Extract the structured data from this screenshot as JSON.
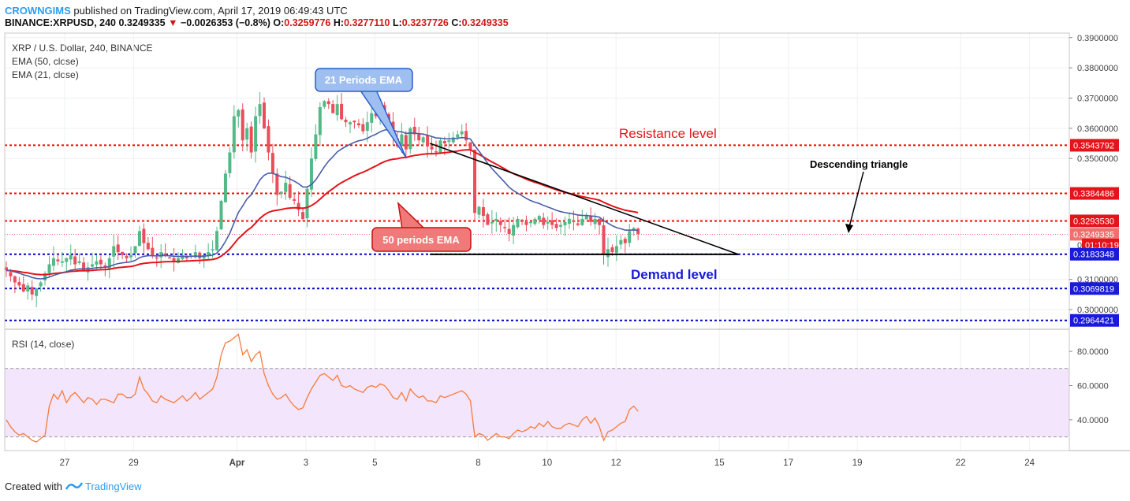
{
  "header": {
    "author": "CROWNGIMS",
    "published_text": "published on TradingView.com, April 17, 2019 06:49:43 UTC",
    "symbol_line": "BINANCE:XRPUSD, 240",
    "last_price": "0.3249335",
    "change_arrow": "▼",
    "change": "−0.0026353 (−0.8%)",
    "o_label": "O:",
    "o_value": "0.3259776",
    "h_label": "H:",
    "h_value": "0.3277110",
    "l_label": "L:",
    "l_value": "0.3237726",
    "c_label": "C:",
    "c_value": "0.3249335"
  },
  "legend": {
    "title": "XRP / U.S. Dollar, 240, BINANCE",
    "ema50": "EMA (50, close)",
    "ema21": "EMA (21, close)",
    "rsi": "RSI (14, close)"
  },
  "annotations": {
    "ema21_callout": "21 Periods EMA",
    "ema50_callout": "50 periods EMA",
    "resistance": "Resistance level",
    "demand": "Demand level",
    "triangle": "Descending triangle"
  },
  "footer": {
    "created_with": "Created with",
    "brand": "TradingView"
  },
  "colors": {
    "up": "#53b987",
    "down": "#eb4d5c",
    "ema21": "#4a5ea8",
    "ema50": "#e5141b",
    "red_dotted": "#ff0000",
    "blue_dotted": "#0000cc",
    "rsi_line": "#f57c3c",
    "rsi_band": "#f3e5fb",
    "axis_text": "#444444"
  },
  "chart_data": {
    "type": "candlestick",
    "x_tick_labels": [
      "27",
      "29",
      "Apr",
      "3",
      "5",
      "8",
      "10",
      "12",
      "15",
      "17",
      "19",
      "22",
      "24"
    ],
    "y_tick_labels": [
      "0.3900000",
      "0.3800000",
      "0.3700000",
      "0.3600000",
      "0.3500000",
      "0.3100000",
      "0.3000000"
    ],
    "ylim": [
      0.2935,
      0.3915
    ],
    "price_tags": [
      {
        "value": 0.3543792,
        "label": "0.3543792",
        "color": "#e5141b"
      },
      {
        "value": 0.3384486,
        "label": "0.3384486",
        "color": "#e5141b"
      },
      {
        "value": 0.329353,
        "label": "0.3293530",
        "color": "#e5141b"
      },
      {
        "value": 0.3249335,
        "label": "0.3249335",
        "color": "#f07070"
      },
      {
        "value": 0.3214,
        "label": "01:10:19",
        "color": "#e5141b"
      },
      {
        "value": 0.3183348,
        "label": "0.3183348",
        "color": "#1a1adb"
      },
      {
        "value": 0.3069819,
        "label": "0.3069819",
        "color": "#1a1adb"
      },
      {
        "value": 0.2964421,
        "label": "0.2964421",
        "color": "#1a1adb"
      }
    ],
    "partial_tick_label": "0",
    "horizontal_levels": [
      {
        "value": 0.3543792,
        "color": "#ff0000"
      },
      {
        "value": 0.3384486,
        "color": "#ff0000"
      },
      {
        "value": 0.329353,
        "color": "#ff0000"
      },
      {
        "value": 0.3183348,
        "color": "#0000cc"
      },
      {
        "value": 0.3069819,
        "color": "#0000cc"
      },
      {
        "value": 0.2964421,
        "color": "#0000cc"
      }
    ],
    "descending_triangle": {
      "upper": [
        [
          10.6,
          0.355
        ],
        [
          19.55,
          0.3183
        ]
      ],
      "lower": [
        [
          10.6,
          0.3183
        ],
        [
          19.55,
          0.3183
        ]
      ]
    },
    "candles_close": [
      0.313,
      0.311,
      0.309,
      0.308,
      0.306,
      0.308,
      0.305,
      0.307,
      0.309,
      0.312,
      0.315,
      0.317,
      0.316,
      0.316,
      0.317,
      0.318,
      0.315,
      0.316,
      0.313,
      0.314,
      0.315,
      0.316,
      0.315,
      0.314,
      0.317,
      0.321,
      0.319,
      0.318,
      0.317,
      0.318,
      0.321,
      0.326,
      0.322,
      0.32,
      0.318,
      0.317,
      0.319,
      0.318,
      0.317,
      0.316,
      0.317,
      0.318,
      0.317,
      0.318,
      0.319,
      0.317,
      0.318,
      0.319,
      0.32,
      0.326,
      0.336,
      0.345,
      0.352,
      0.364,
      0.366,
      0.356,
      0.36,
      0.352,
      0.364,
      0.368,
      0.36,
      0.352,
      0.345,
      0.338,
      0.339,
      0.342,
      0.337,
      0.336,
      0.333,
      0.33,
      0.34,
      0.35,
      0.358,
      0.367,
      0.369,
      0.368,
      0.365,
      0.368,
      0.363,
      0.362,
      0.362,
      0.362,
      0.361,
      0.359,
      0.362,
      0.365,
      0.364,
      0.367,
      0.365,
      0.362,
      0.357,
      0.354,
      0.358,
      0.353,
      0.36,
      0.358,
      0.356,
      0.357,
      0.354,
      0.353,
      0.352,
      0.356,
      0.355,
      0.356,
      0.357,
      0.358,
      0.359,
      0.356,
      0.353,
      0.332,
      0.334,
      0.331,
      0.328,
      0.329,
      0.33,
      0.328,
      0.327,
      0.325,
      0.328,
      0.33,
      0.329,
      0.328,
      0.329,
      0.33,
      0.331,
      0.328,
      0.329,
      0.328,
      0.327,
      0.328,
      0.329,
      0.33,
      0.329,
      0.328,
      0.33,
      0.331,
      0.329,
      0.33,
      0.328,
      0.318,
      0.32,
      0.319,
      0.321,
      0.323,
      0.322,
      0.326,
      0.327,
      0.325
    ],
    "rsi": {
      "ylim": [
        22,
        92
      ],
      "y_tick_labels": [
        "80.0000",
        "60.0000",
        "40.0000"
      ],
      "levels": [
        70,
        30
      ],
      "values": [
        40,
        36,
        33,
        31,
        32,
        30,
        28,
        27,
        29,
        31,
        48,
        55,
        52,
        57,
        50,
        54,
        56,
        53,
        50,
        53,
        52,
        49,
        52,
        52,
        51,
        50,
        55,
        55,
        53,
        53,
        55,
        65,
        58,
        55,
        51,
        50,
        54,
        52,
        51,
        50,
        52,
        54,
        51,
        53,
        56,
        52,
        54,
        56,
        58,
        65,
        78,
        85,
        86,
        88,
        90,
        78,
        81,
        74,
        78,
        80,
        67,
        60,
        55,
        52,
        53,
        55,
        51,
        48,
        46,
        47,
        53,
        58,
        62,
        66,
        67,
        65,
        63,
        66,
        60,
        59,
        60,
        58,
        57,
        56,
        59,
        60,
        59,
        61,
        60,
        57,
        53,
        52,
        56,
        51,
        58,
        55,
        53,
        54,
        51,
        51,
        50,
        54,
        53,
        54,
        55,
        56,
        57,
        55,
        51,
        30,
        32,
        31,
        28,
        30,
        32,
        30,
        30,
        29,
        32,
        34,
        33,
        34,
        36,
        35,
        38,
        36,
        39,
        36,
        35,
        35,
        37,
        38,
        37,
        36,
        40,
        42,
        38,
        41,
        36,
        28,
        33,
        34,
        36,
        38,
        39,
        46,
        48,
        45
      ]
    }
  }
}
